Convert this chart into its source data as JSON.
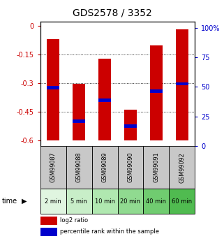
{
  "title": "GDS2578 / 3352",
  "samples": [
    "GSM99087",
    "GSM99088",
    "GSM99089",
    "GSM99090",
    "GSM99091",
    "GSM99092"
  ],
  "time_labels": [
    "2 min",
    "5 min",
    "10 min",
    "20 min",
    "40 min",
    "60 min"
  ],
  "bar_tops": [
    -0.07,
    -0.305,
    -0.175,
    -0.44,
    -0.105,
    -0.02
  ],
  "bar_bottom": -0.6,
  "blue_markers": [
    -0.325,
    -0.5,
    -0.39,
    -0.525,
    -0.345,
    -0.305
  ],
  "ylim_left": [
    -0.63,
    0.02
  ],
  "yticks_left": [
    0,
    -0.15,
    -0.3,
    -0.45,
    -0.6
  ],
  "yticks_right": [
    0,
    25,
    50,
    75,
    100
  ],
  "bar_color": "#CC0000",
  "blue_color": "#0000CC",
  "title_fontsize": 10,
  "tick_fontsize": 7,
  "sample_box_color": "#C8C8C8",
  "time_box_colors": [
    "#E0F5E0",
    "#C8EEC8",
    "#B0E8B0",
    "#90DA90",
    "#70CC70",
    "#50BB50"
  ],
  "legend_items": [
    "log2 ratio",
    "percentile rank within the sample"
  ],
  "legend_colors": [
    "#CC0000",
    "#0000CC"
  ],
  "bar_width": 0.5,
  "right_tick_color": "#0000CC",
  "left_tick_color": "#CC0000",
  "label_fontsize": 5.8,
  "time_label_fontsize": 6.0
}
